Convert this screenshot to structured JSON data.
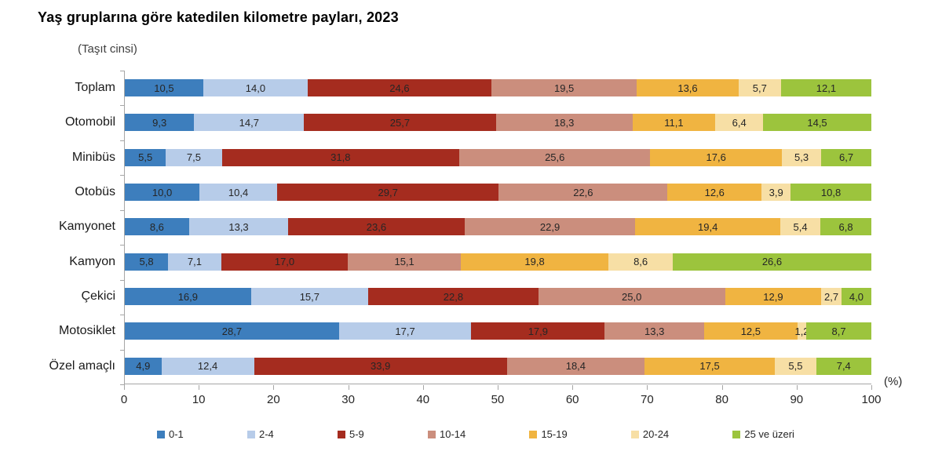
{
  "title": "Yaş gruplarına göre katedilen kilometre payları, 2023",
  "subtitle": "(Taşıt cinsi)",
  "chart_data": {
    "type": "bar",
    "orientation": "horizontal",
    "stacked": true,
    "title": "Yaş gruplarına göre katedilen kilometre payları, 2023",
    "subtitle": "(Taşıt cinsi)",
    "xlabel": "(%)",
    "xlim": [
      0,
      100
    ],
    "xticks": [
      0,
      10,
      20,
      30,
      40,
      50,
      60,
      70,
      80,
      90,
      100
    ],
    "grid": false,
    "legend_position": "bottom",
    "value_label_decimal_separator": ",",
    "categories": [
      "Toplam",
      "Otomobil",
      "Minibüs",
      "Otobüs",
      "Kamyonet",
      "Kamyon",
      "Çekici",
      "Motosiklet",
      "Özel amaçlı"
    ],
    "series": [
      {
        "name": "0-1",
        "color": "#3d7ebd",
        "values": [
          10.5,
          9.3,
          5.5,
          10.0,
          8.6,
          5.8,
          16.9,
          28.7,
          4.9
        ]
      },
      {
        "name": "2-4",
        "color": "#b7cce9",
        "values": [
          14.0,
          14.7,
          7.5,
          10.4,
          13.3,
          7.1,
          15.7,
          17.7,
          12.4
        ]
      },
      {
        "name": "5-9",
        "color": "#a52c1f",
        "values": [
          24.6,
          25.7,
          31.8,
          29.7,
          23.6,
          17.0,
          22.8,
          17.9,
          33.9
        ]
      },
      {
        "name": "10-14",
        "color": "#cb8e7d",
        "values": [
          19.5,
          18.3,
          25.6,
          22.6,
          22.9,
          15.1,
          25.0,
          13.3,
          18.4
        ]
      },
      {
        "name": "15-19",
        "color": "#f0b441",
        "values": [
          13.6,
          11.1,
          17.6,
          12.6,
          19.4,
          19.8,
          12.9,
          12.5,
          17.5
        ]
      },
      {
        "name": "20-24",
        "color": "#f7dfa5",
        "values": [
          5.7,
          6.4,
          5.3,
          3.9,
          5.4,
          8.6,
          2.7,
          1.2,
          5.5
        ]
      },
      {
        "name": "25 ve üzeri",
        "color": "#9cc43d",
        "values": [
          12.1,
          14.5,
          6.7,
          10.8,
          6.8,
          26.6,
          4.0,
          8.7,
          7.4
        ]
      }
    ]
  }
}
